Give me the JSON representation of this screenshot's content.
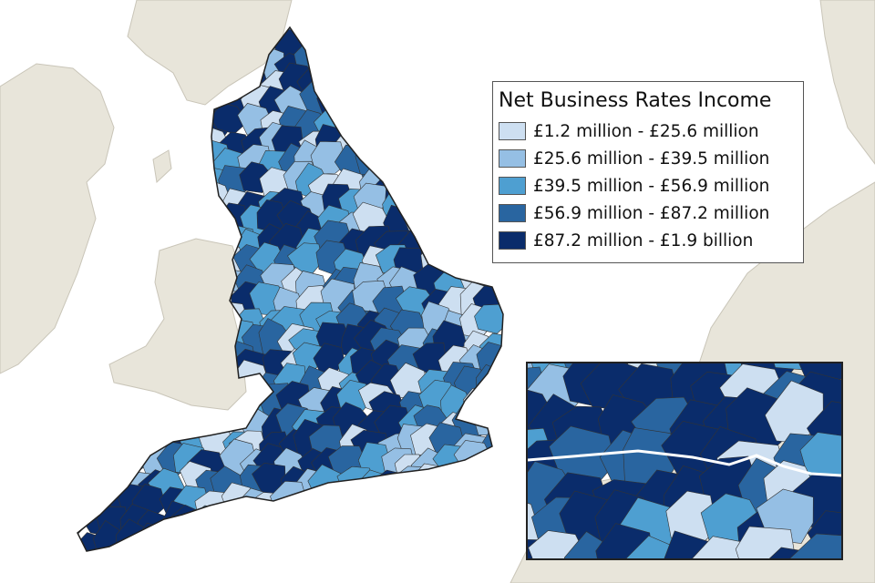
{
  "legend": {
    "title": "Net Business Rates Income",
    "items": [
      {
        "label": "£1.2 million - £25.6 million",
        "color": "#cddff1"
      },
      {
        "label": "£25.6 million - £39.5 million",
        "color": "#95bfe4"
      },
      {
        "label": "£39.5 million - £56.9 million",
        "color": "#4e9fd1"
      },
      {
        "label": "£56.9 million - £87.2 million",
        "color": "#2965a0"
      },
      {
        "label": "£87.2 million - £1.9 billion",
        "color": "#0a2c6b"
      }
    ]
  },
  "colors": {
    "sea": "#ffffff",
    "other_land": "#e8e5da",
    "boundary": "#222222"
  }
}
